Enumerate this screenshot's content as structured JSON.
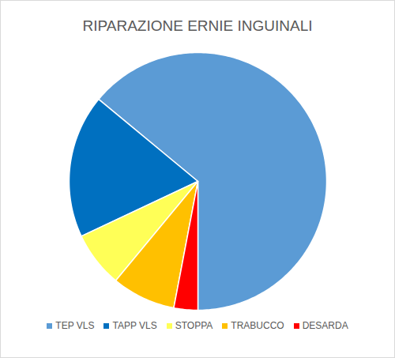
{
  "chart_data": {
    "type": "pie",
    "title": "RIPARAZIONE ERNIE INGUINALI",
    "categories": [
      "TEP VLS",
      "TAPP VLS",
      "STOPPA",
      "TRABUCCO",
      "DESARDA"
    ],
    "values": [
      64,
      18,
      7,
      8,
      3
    ],
    "colors": [
      "#5b9bd5",
      "#0070c0",
      "#ffff57",
      "#ffc000",
      "#ff0000"
    ],
    "legend": "bottom"
  }
}
